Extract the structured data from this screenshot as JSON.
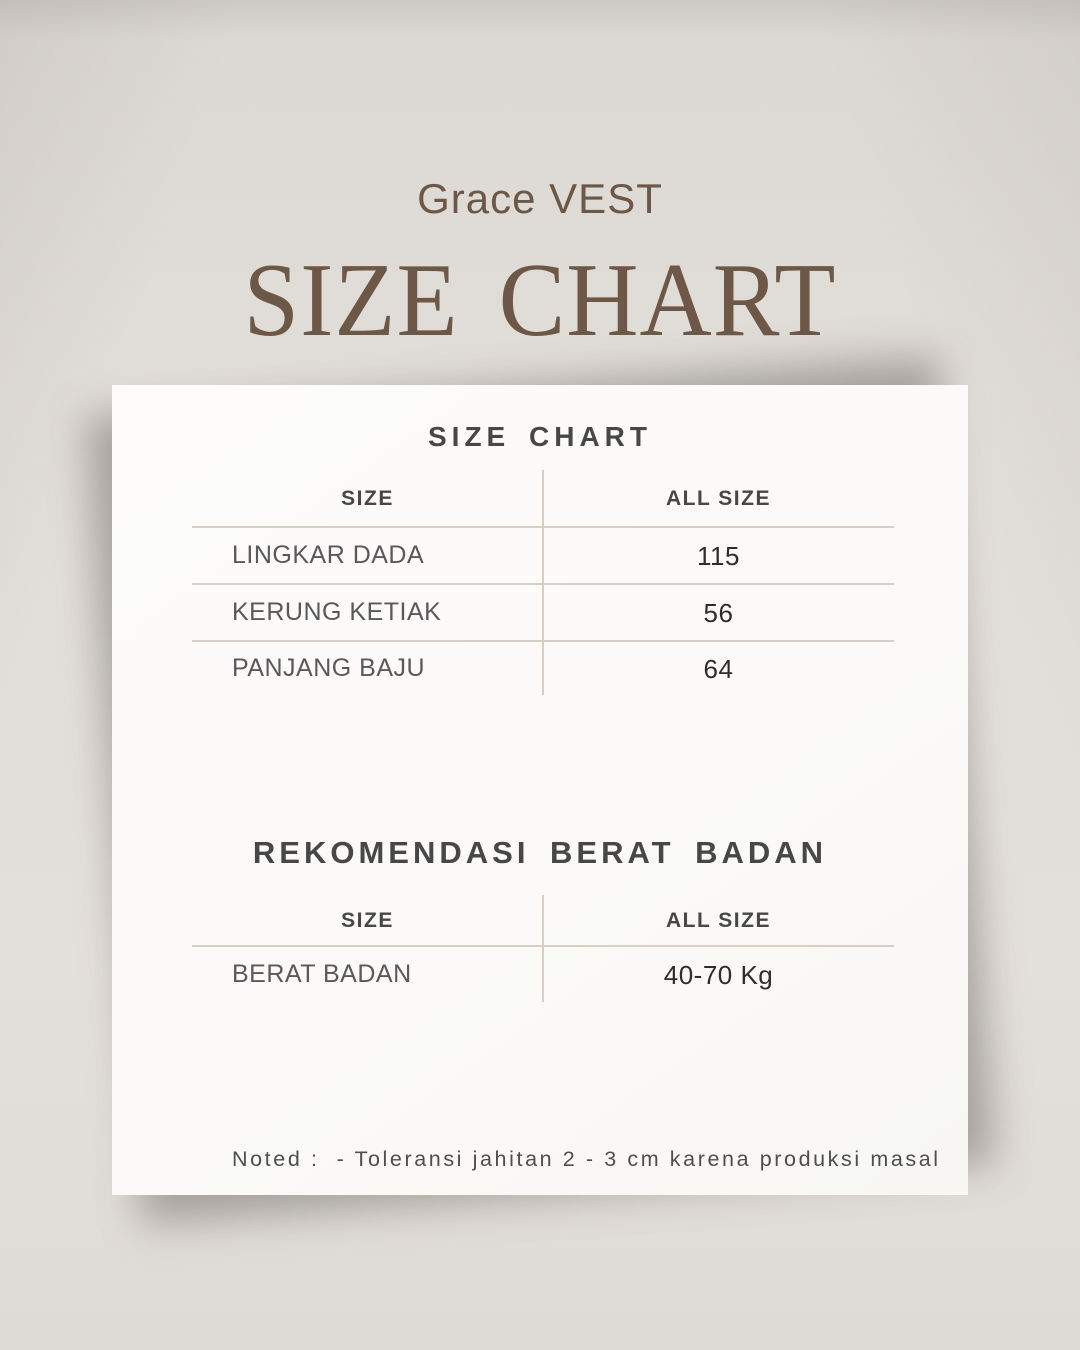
{
  "header": {
    "brand": "Grace VEST",
    "title": "SIZE CHART"
  },
  "card": {
    "size_chart": {
      "heading": "SIZE CHART",
      "col_size": "SIZE",
      "col_value": "ALL SIZE",
      "rows": [
        {
          "label": "LINGKAR DADA",
          "value": "115"
        },
        {
          "label": "KERUNG KETIAK",
          "value": "56"
        },
        {
          "label": "PANJANG BAJU",
          "value": "64"
        }
      ]
    },
    "weight": {
      "heading": "REKOMENDASI BERAT BADAN",
      "col_size": "SIZE",
      "col_value": "ALL SIZE",
      "rows": [
        {
          "label": "BERAT BADAN",
          "value": "40-70 Kg"
        }
      ]
    },
    "note": "Noted :  - Toleransi jahitan 2 - 3 cm karena produksi masal"
  },
  "colors": {
    "brown": "#6d5746",
    "bg": "#e0dcd7",
    "card": "#fcfbf9",
    "divider": "#d9cec3",
    "heading-dark": "#474747",
    "label": "#59595b",
    "value": "#2d2d2d"
  }
}
